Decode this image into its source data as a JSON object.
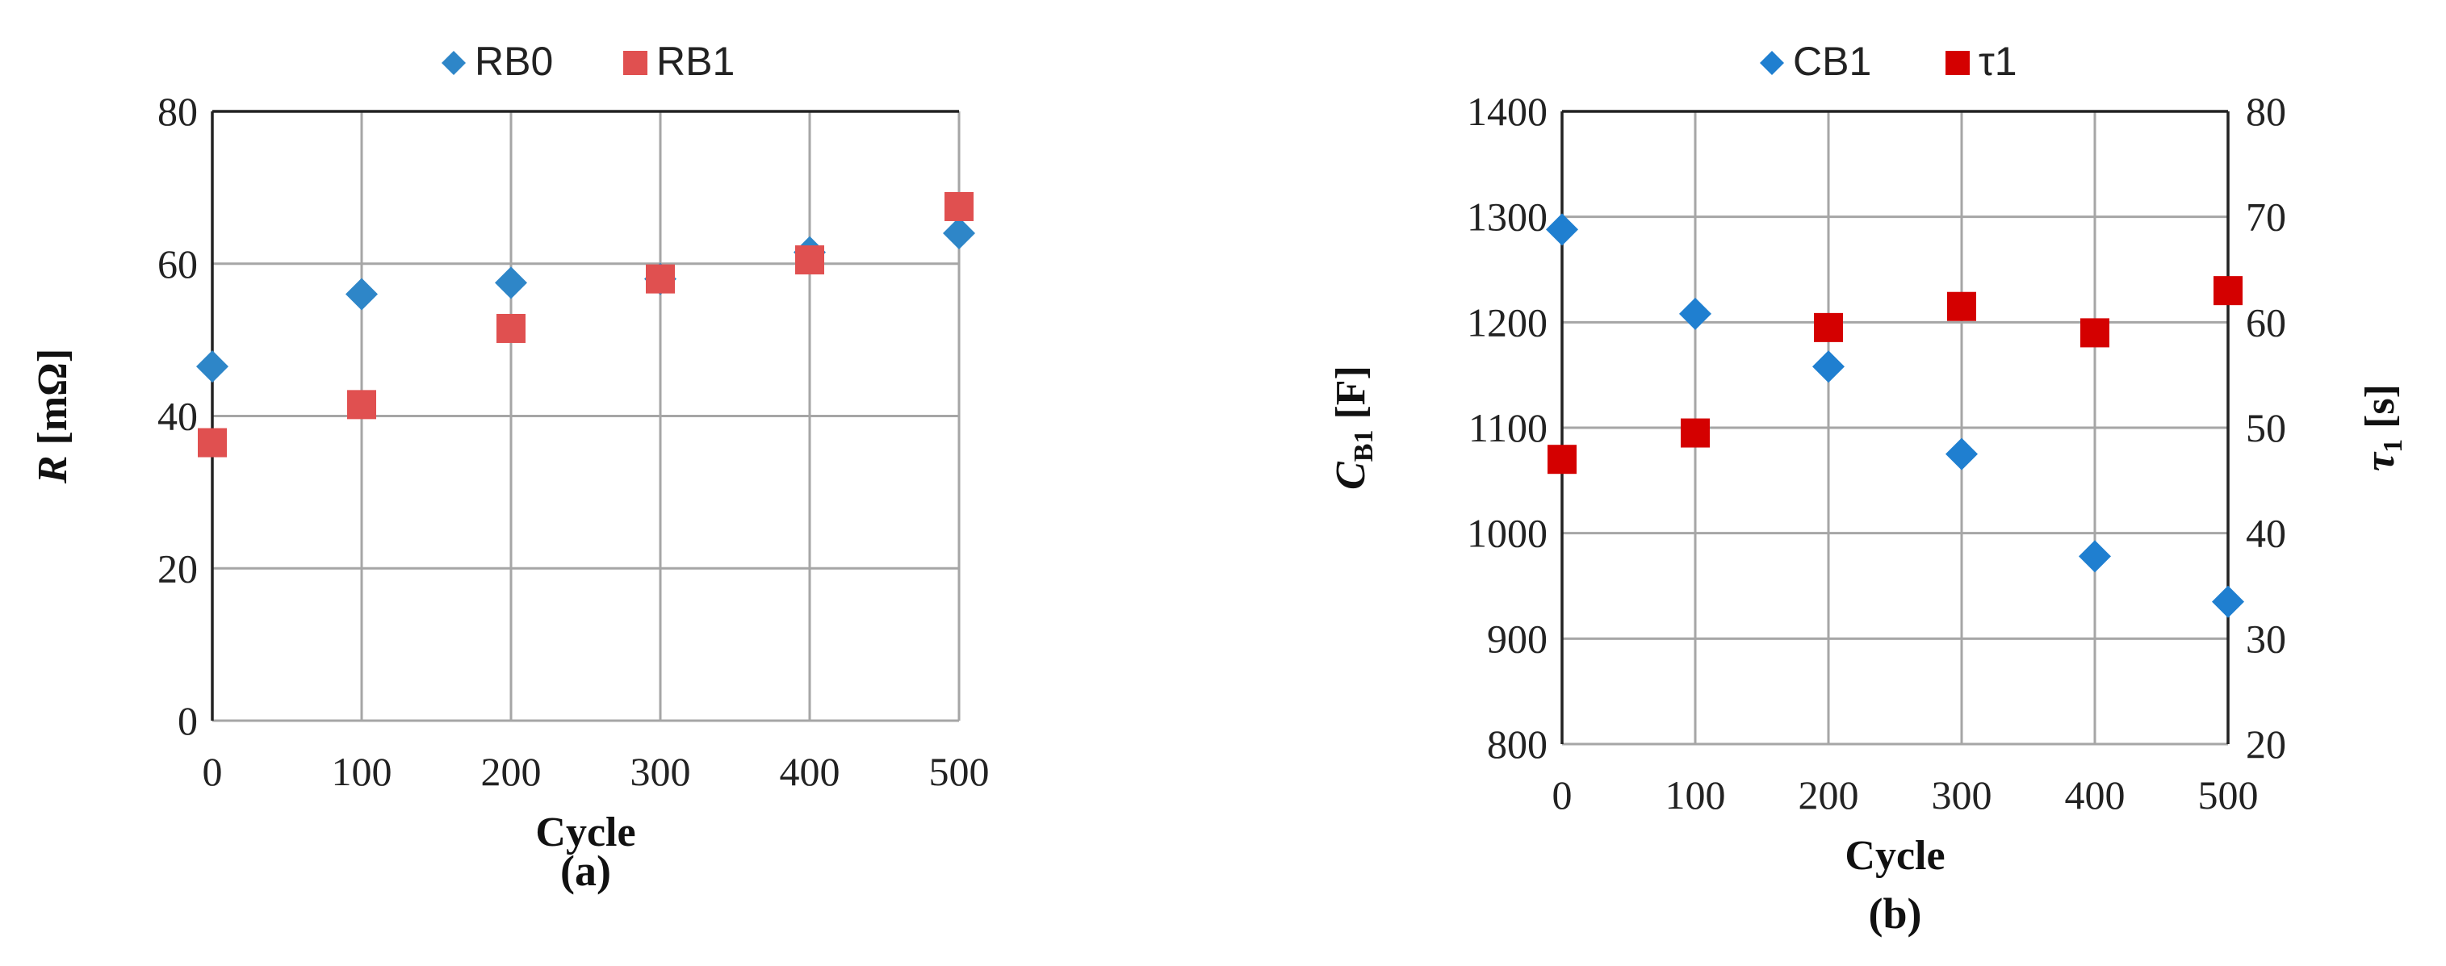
{
  "chart_data": [
    {
      "type": "scatter",
      "panel_label": "(a)",
      "xlabel": "Cycle",
      "ylabel_main": "R",
      "ylabel_sub": "",
      "ylabel_unit": "[mΩ]",
      "xlim": [
        0,
        500
      ],
      "ylim": [
        0,
        80
      ],
      "xticks": [
        "0",
        "100",
        "200",
        "300",
        "400",
        "500"
      ],
      "yticks": [
        "0",
        "20",
        "40",
        "60",
        "80"
      ],
      "grid": true,
      "legend_position": "top",
      "series": [
        {
          "name": "RB0",
          "marker": "diamond",
          "color": "#2e86c8",
          "x": [
            0,
            100,
            200,
            300,
            400,
            500
          ],
          "y": [
            46.5,
            56,
            57.5,
            58,
            61.5,
            64
          ]
        },
        {
          "name": "RB1",
          "marker": "square",
          "color": "#e05050",
          "x": [
            0,
            100,
            200,
            300,
            400,
            500
          ],
          "y": [
            36.5,
            41.5,
            51.5,
            58,
            60.5,
            67.5
          ]
        }
      ]
    },
    {
      "type": "scatter",
      "panel_label": "(b)",
      "xlabel": "Cycle",
      "ylabel_main": "C",
      "ylabel_sub": "B1",
      "ylabel_unit": "[F]",
      "y2label_main": "τ",
      "y2label_sub": "1",
      "y2label_unit": "[s]",
      "xlim": [
        0,
        500
      ],
      "ylim": [
        800,
        1400
      ],
      "y2lim": [
        20,
        80
      ],
      "xticks": [
        "0",
        "100",
        "200",
        "300",
        "400",
        "500"
      ],
      "yticks": [
        "800",
        "900",
        "1000",
        "1100",
        "1200",
        "1300",
        "1400"
      ],
      "y2ticks": [
        "20",
        "30",
        "40",
        "50",
        "60",
        "70",
        "80"
      ],
      "grid": true,
      "legend_position": "top",
      "series": [
        {
          "name": "CB1",
          "marker": "diamond",
          "color": "#1f7fd0",
          "axis": "left",
          "x": [
            0,
            100,
            200,
            300,
            400,
            500
          ],
          "y": [
            1288,
            1208,
            1158,
            1075,
            978,
            935
          ]
        },
        {
          "name": "τ1",
          "marker": "square",
          "color": "#d40000",
          "axis": "right",
          "x": [
            0,
            100,
            200,
            300,
            400,
            500
          ],
          "y": [
            47,
            49.5,
            59.5,
            61.5,
            59,
            63
          ]
        }
      ]
    }
  ]
}
